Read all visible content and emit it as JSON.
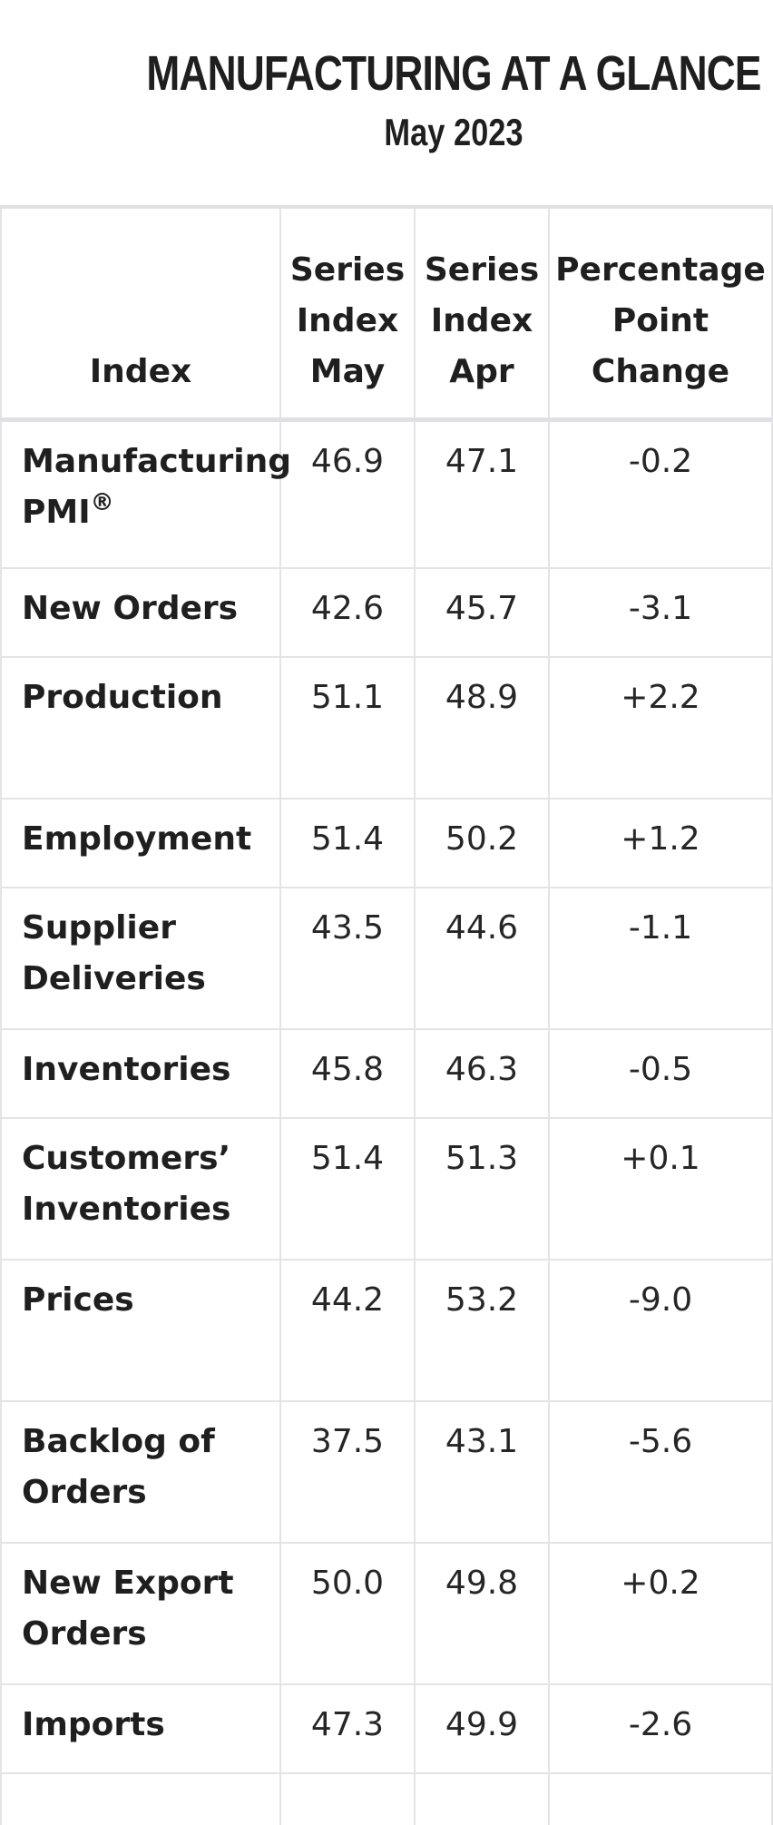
{
  "header": {
    "title": "MANUFACTURING AT A GLANCE",
    "subtitle": "May 2023"
  },
  "table": {
    "headers": {
      "index": "Index",
      "may": [
        "Series",
        "Index",
        "May"
      ],
      "apr": [
        "Series",
        "Index",
        "Apr"
      ],
      "change": [
        "Percentage",
        "Point",
        "Change"
      ]
    },
    "rows": [
      {
        "name": "Manufacturing PMI",
        "sup": "®",
        "may": "46.9",
        "apr": "47.1",
        "change": "-0.2"
      },
      {
        "name": "New Orders",
        "may": "42.6",
        "apr": "45.7",
        "change": "-3.1"
      },
      {
        "name": "Production",
        "may": "51.1",
        "apr": "48.9",
        "change": "+2.2"
      },
      {
        "name": "Employment",
        "may": "51.4",
        "apr": "50.2",
        "change": "+1.2"
      },
      {
        "name": "Supplier Deliveries",
        "may": "43.5",
        "apr": "44.6",
        "change": "-1.1"
      },
      {
        "name": "Inventories",
        "may": "45.8",
        "apr": "46.3",
        "change": "-0.5"
      },
      {
        "name": "Customers’ Inventories",
        "may": "51.4",
        "apr": "51.3",
        "change": "+0.1"
      },
      {
        "name": "Prices",
        "may": "44.2",
        "apr": "53.2",
        "change": "-9.0"
      },
      {
        "name": "Backlog of Orders",
        "may": "37.5",
        "apr": "43.1",
        "change": "-5.6"
      },
      {
        "name": "New Export Orders",
        "may": "50.0",
        "apr": "49.8",
        "change": "+0.2"
      },
      {
        "name": "Imports",
        "may": "47.3",
        "apr": "49.9",
        "change": "-2.6"
      }
    ]
  }
}
